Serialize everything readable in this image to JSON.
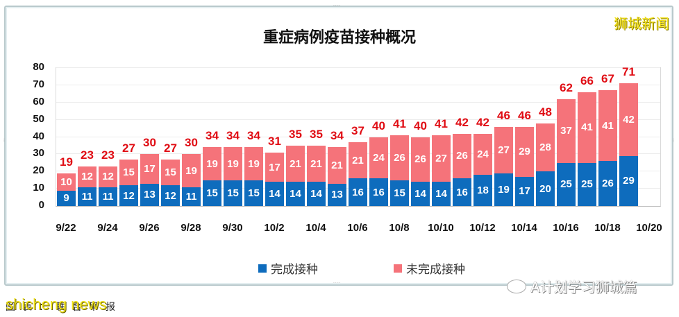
{
  "chart_title": "重症病例疫苗接种概况",
  "brand": "狮城新闻",
  "watermark": "shicheng news",
  "credit": "图表：联合早报",
  "wechat_caption": "A计划学习狮城篇",
  "colors": {
    "completed": "#0e6cbd",
    "not_completed": "#f5737a",
    "total_label": "#e00d14"
  },
  "legend": [
    {
      "label": "完成接种",
      "color": "#0e6cbd"
    },
    {
      "label": "未完成接种",
      "color": "#f5737a"
    }
  ],
  "y_ticks": [
    "80",
    "70",
    "60",
    "50",
    "40",
    "30",
    "20",
    "10",
    "0"
  ],
  "x_ticks": [
    "9/22",
    "9/24",
    "9/26",
    "9/28",
    "9/30",
    "10/2",
    "10/4",
    "10/6",
    "10/8",
    "10/10",
    "10/12",
    "10/14",
    "10/16",
    "10/18",
    "10/20"
  ],
  "chart_data": {
    "type": "bar",
    "stacked": true,
    "title": "重症病例疫苗接种概况",
    "xlabel": "",
    "ylabel": "",
    "ylim": [
      0,
      80
    ],
    "grid": true,
    "legend_position": "bottom",
    "categories": [
      "9/22",
      "9/23",
      "9/24",
      "9/25",
      "9/26",
      "9/27",
      "9/28",
      "9/29",
      "9/30",
      "10/1",
      "10/2",
      "10/3",
      "10/4",
      "10/5",
      "10/6",
      "10/7",
      "10/8",
      "10/9",
      "10/10",
      "10/11",
      "10/12",
      "10/13",
      "10/14",
      "10/15",
      "10/16",
      "10/17",
      "10/18",
      "10/19"
    ],
    "series": [
      {
        "name": "完成接种",
        "values": [
          9,
          11,
          11,
          12,
          13,
          12,
          11,
          15,
          15,
          15,
          14,
          14,
          14,
          13,
          16,
          16,
          15,
          14,
          14,
          16,
          18,
          19,
          17,
          20,
          25,
          25,
          26,
          29
        ]
      },
      {
        "name": "未完成接种",
        "values": [
          10,
          12,
          12,
          15,
          17,
          15,
          19,
          19,
          19,
          19,
          17,
          21,
          21,
          21,
          21,
          24,
          26,
          26,
          27,
          26,
          24,
          27,
          29,
          28,
          37,
          41,
          41,
          42
        ]
      }
    ],
    "totals": [
      19,
      23,
      23,
      27,
      30,
      27,
      30,
      34,
      34,
      34,
      31,
      35,
      35,
      34,
      37,
      40,
      41,
      40,
      41,
      42,
      42,
      46,
      46,
      48,
      62,
      66,
      67,
      71
    ]
  }
}
